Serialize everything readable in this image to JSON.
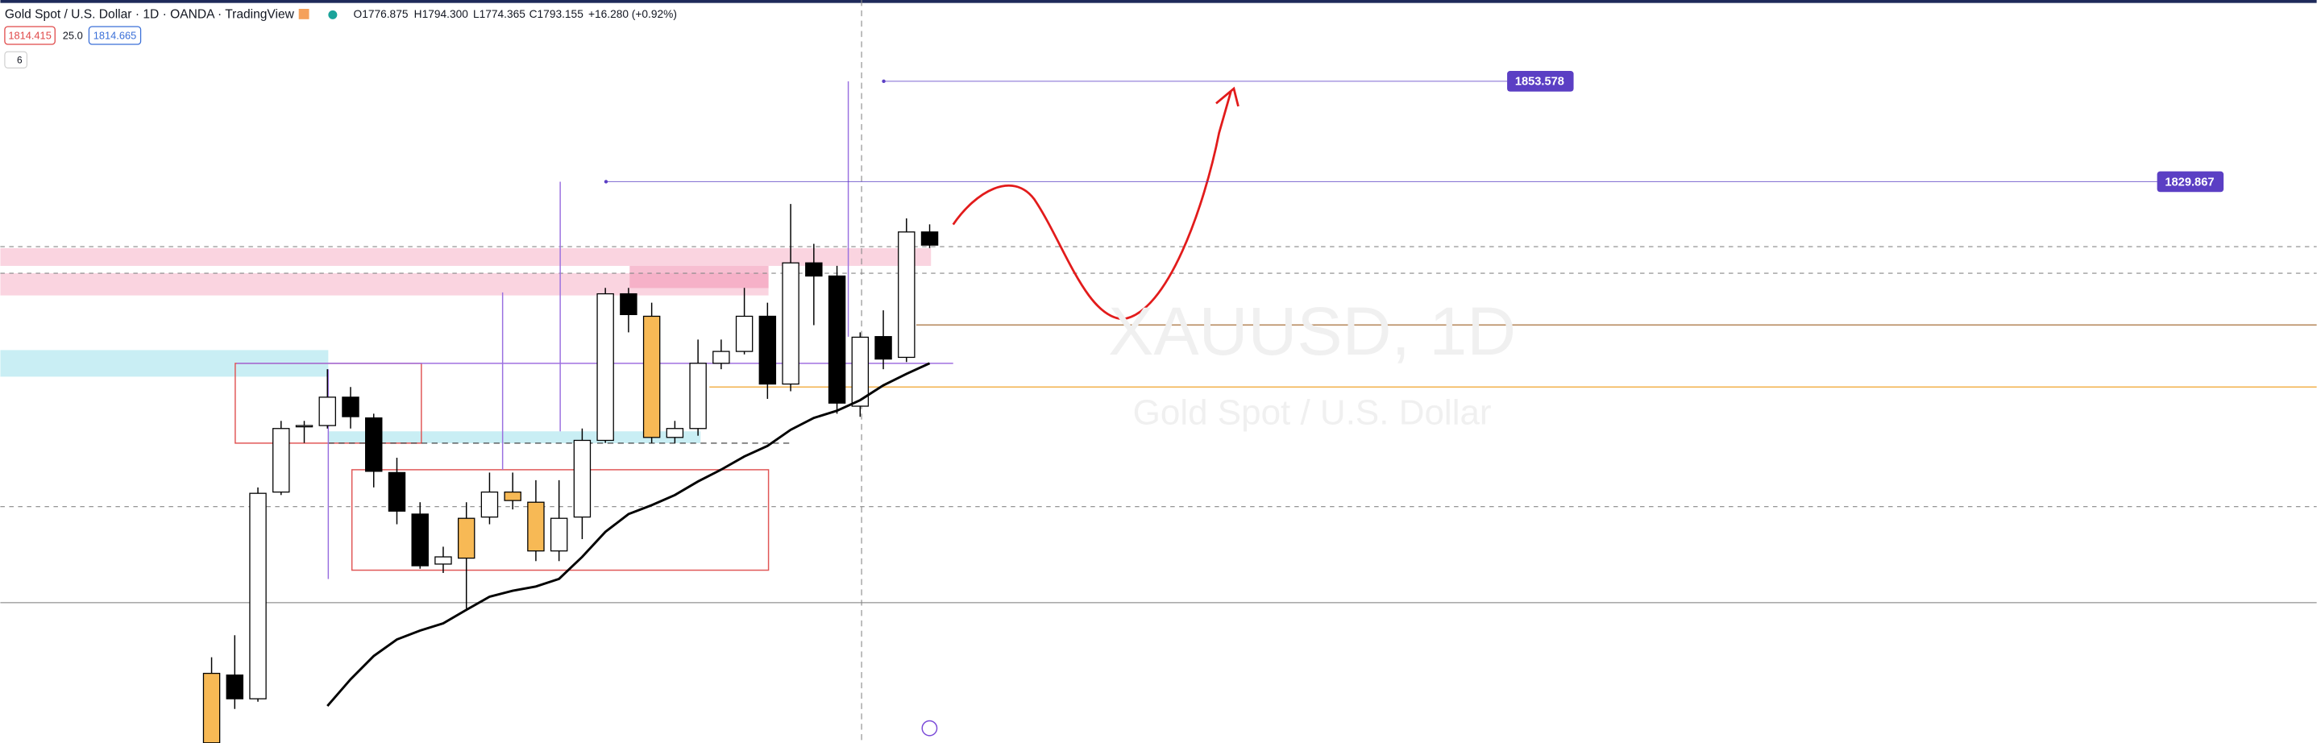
{
  "header": {
    "title": "Gold Spot / U.S. Dollar · 1D · OANDA · TradingView",
    "readout": [
      "O1776.875",
      "H1794.300",
      "L1774.365",
      "C1793.155",
      "+16.280 (+0.92%)"
    ],
    "bid": "1814.415",
    "spread": "25.0",
    "ask": "1814.665",
    "indicators_count": "6"
  },
  "watermark": {
    "symbol": "XAUUSD, 1D",
    "description": "Gold Spot / U.S. Dollar"
  },
  "chart_data": {
    "type": "candlestick",
    "ylim": [
      1697.36,
      1872.76
    ],
    "candles": [
      {
        "open": 1697.4,
        "high": 1717.6,
        "low": 1697.4,
        "close": 1713.8
      },
      {
        "open": 1713.4,
        "high": 1722.8,
        "low": 1705.4,
        "close": 1707.8
      },
      {
        "open": 1707.8,
        "high": 1757.7,
        "low": 1707.1,
        "close": 1756.3
      },
      {
        "open": 1756.6,
        "high": 1773.4,
        "low": 1755.9,
        "close": 1771.6
      },
      {
        "open": 1772.0,
        "high": 1773.4,
        "low": 1768.2,
        "close": 1772.3
      },
      {
        "open": 1772.3,
        "high": 1785.6,
        "low": 1771.6,
        "close": 1779.0
      },
      {
        "open": 1779.0,
        "high": 1781.4,
        "low": 1771.6,
        "close": 1774.4
      },
      {
        "open": 1774.1,
        "high": 1775.1,
        "low": 1757.7,
        "close": 1761.5
      },
      {
        "open": 1761.2,
        "high": 1764.7,
        "low": 1749.0,
        "close": 1752.1
      },
      {
        "open": 1751.4,
        "high": 1754.2,
        "low": 1738.5,
        "close": 1739.2
      },
      {
        "open": 1739.6,
        "high": 1743.7,
        "low": 1737.5,
        "close": 1741.3
      },
      {
        "open": 1741.0,
        "high": 1754.2,
        "low": 1729.1,
        "close": 1750.4
      },
      {
        "open": 1750.7,
        "high": 1761.2,
        "low": 1749.0,
        "close": 1756.6
      },
      {
        "open": 1754.6,
        "high": 1761.2,
        "low": 1752.5,
        "close": 1756.6
      },
      {
        "open": 1742.7,
        "high": 1759.4,
        "low": 1740.3,
        "close": 1754.2
      },
      {
        "open": 1742.7,
        "high": 1759.4,
        "low": 1740.3,
        "close": 1750.4
      },
      {
        "open": 1750.7,
        "high": 1771.6,
        "low": 1745.5,
        "close": 1768.8
      },
      {
        "open": 1768.8,
        "high": 1804.8,
        "low": 1768.2,
        "close": 1803.4
      },
      {
        "open": 1803.4,
        "high": 1804.8,
        "low": 1794.3,
        "close": 1798.5
      },
      {
        "open": 1769.5,
        "high": 1801.3,
        "low": 1768.2,
        "close": 1798.1
      },
      {
        "open": 1769.5,
        "high": 1773.4,
        "low": 1768.2,
        "close": 1771.6
      },
      {
        "open": 1771.6,
        "high": 1792.6,
        "low": 1769.9,
        "close": 1787.0
      },
      {
        "open": 1787.0,
        "high": 1792.6,
        "low": 1785.6,
        "close": 1789.8
      },
      {
        "open": 1789.8,
        "high": 1804.8,
        "low": 1789.1,
        "close": 1798.1
      },
      {
        "open": 1798.1,
        "high": 1801.3,
        "low": 1778.6,
        "close": 1782.1
      },
      {
        "open": 1782.1,
        "high": 1824.6,
        "low": 1780.4,
        "close": 1810.7
      },
      {
        "open": 1810.7,
        "high": 1815.2,
        "low": 1796.0,
        "close": 1807.6
      },
      {
        "open": 1807.6,
        "high": 1810.0,
        "low": 1775.1,
        "close": 1777.6
      },
      {
        "open": 1776.875,
        "high": 1794.3,
        "low": 1774.365,
        "close": 1793.155
      },
      {
        "open": 1793.3,
        "high": 1799.5,
        "low": 1785.6,
        "close": 1788.0
      },
      {
        "open": 1788.4,
        "high": 1821.2,
        "low": 1787.3,
        "close": 1818.0
      },
      {
        "open": 1818.0,
        "high": 1819.8,
        "low": 1814.2,
        "close": 1814.9
      }
    ],
    "candle_colors": [
      "#f7b955",
      "#000000",
      "#ffffff",
      "#ffffff",
      "#ffffff",
      "#ffffff",
      "#000000",
      "#000000",
      "#000000",
      "#000000",
      "#ffffff",
      "#f7b955",
      "#ffffff",
      "#f7b955",
      "#f7b955",
      "#ffffff",
      "#ffffff",
      "#ffffff",
      "#000000",
      "#f7b955",
      "#ffffff",
      "#ffffff",
      "#ffffff",
      "#ffffff",
      "#000000",
      "#ffffff",
      "#000000",
      "#000000",
      "#ffffff",
      "#000000",
      "#ffffff",
      "#000000"
    ],
    "moving_average": {
      "color": "#000000",
      "values": [
        null,
        null,
        null,
        null,
        null,
        1706.1,
        1712.4,
        1717.9,
        1721.8,
        1723.9,
        1725.6,
        1728.8,
        1731.9,
        1733.3,
        1734.3,
        1736.1,
        1741.3,
        1747.2,
        1751.4,
        1753.5,
        1755.9,
        1759.1,
        1761.9,
        1765.0,
        1767.5,
        1771.3,
        1774.1,
        1775.8,
        1778.3,
        1781.8,
        1784.5,
        1787.0
      ]
    },
    "levels": [
      {
        "value": 1853.578,
        "color": "#5b3fc4"
      },
      {
        "value": 1829.867,
        "color": "#5b3fc4"
      }
    ]
  }
}
